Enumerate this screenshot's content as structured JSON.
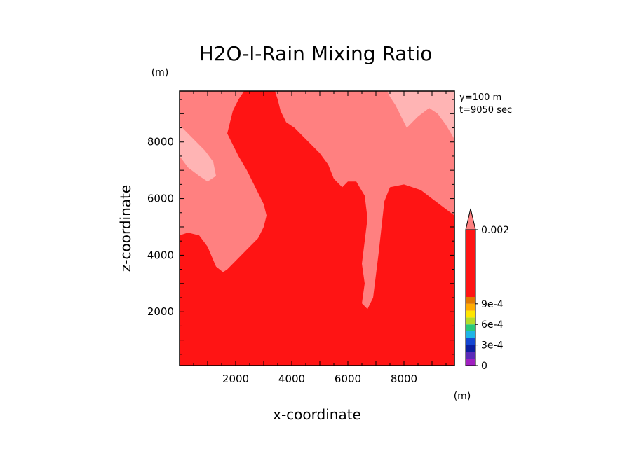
{
  "chart_data": {
    "type": "contour",
    "title": "H2O-l-Rain Mixing Ratio",
    "xlabel": "x-coordinate",
    "ylabel": "z-coordinate",
    "x_unit": "(m)",
    "y_unit": "(m)",
    "annotations": [
      "y=100 m",
      "t=9050 sec"
    ],
    "xlim": [
      0,
      9800
    ],
    "ylim": [
      100,
      9800
    ],
    "x_ticks": [
      2000,
      4000,
      6000,
      8000
    ],
    "y_ticks": [
      2000,
      4000,
      6000,
      8000
    ],
    "colorbar": {
      "levels": [
        0,
        0.0001,
        0.0002,
        0.0003,
        0.0004,
        0.0005,
        0.0006,
        0.0007,
        0.0008,
        0.0009,
        0.001,
        0.002
      ],
      "tick_labels": [
        {
          "value": 0,
          "label": "0"
        },
        {
          "value": 0.0003,
          "label": "3e-4"
        },
        {
          "value": 0.0006,
          "label": "6e-4"
        },
        {
          "value": 0.0009,
          "label": "9e-4"
        },
        {
          "value": 0.002,
          "label": "0.002"
        }
      ],
      "colors": [
        "#a020c0",
        "#5a2ab8",
        "#0a1ea0",
        "#1446d2",
        "#1eb4e6",
        "#28c878",
        "#b4dc28",
        "#ffe600",
        "#ffaa00",
        "#e17800",
        "#ff1414",
        "#ff8080",
        "#ffb4b4"
      ],
      "extend": "max"
    },
    "regions": [
      {
        "name": "red-region",
        "range": "0.001-0.002",
        "color": "#ff1414",
        "polygon": [
          [
            0,
            100
          ],
          [
            9800,
            100
          ],
          [
            9800,
            9800
          ],
          [
            0,
            9800
          ]
        ]
      },
      {
        "name": "pink-left-region",
        "range": "0.001-0.002",
        "color": "#ff8080",
        "polygon": [
          [
            0,
            4700
          ],
          [
            300,
            4800
          ],
          [
            700,
            4700
          ],
          [
            1000,
            4300
          ],
          [
            1300,
            3600
          ],
          [
            1550,
            3400
          ],
          [
            1700,
            3500
          ],
          [
            2000,
            3800
          ],
          [
            2400,
            4200
          ],
          [
            2800,
            4600
          ],
          [
            3000,
            5000
          ],
          [
            3100,
            5400
          ],
          [
            3000,
            5800
          ],
          [
            2700,
            6400
          ],
          [
            2400,
            7000
          ],
          [
            2100,
            7500
          ],
          [
            1900,
            7900
          ],
          [
            1700,
            8300
          ],
          [
            1800,
            8700
          ],
          [
            1900,
            9100
          ],
          [
            2100,
            9500
          ],
          [
            2300,
            9800
          ],
          [
            0,
            9800
          ]
        ]
      },
      {
        "name": "pink-center-region",
        "range": "0.001-0.002",
        "color": "#ff8080",
        "polygon": [
          [
            3400,
            9800
          ],
          [
            9800,
            9800
          ],
          [
            9800,
            5400
          ],
          [
            9400,
            5700
          ],
          [
            9000,
            6000
          ],
          [
            8600,
            6300
          ],
          [
            8000,
            6500
          ],
          [
            7500,
            6400
          ],
          [
            7300,
            5900
          ],
          [
            7200,
            5000
          ],
          [
            7100,
            4100
          ],
          [
            7000,
            3300
          ],
          [
            6900,
            2500
          ],
          [
            6700,
            2100
          ],
          [
            6500,
            2300
          ],
          [
            6600,
            3000
          ],
          [
            6500,
            3700
          ],
          [
            6600,
            4500
          ],
          [
            6700,
            5300
          ],
          [
            6600,
            6100
          ],
          [
            6300,
            6600
          ],
          [
            6000,
            6600
          ],
          [
            5800,
            6400
          ],
          [
            5500,
            6700
          ],
          [
            5300,
            7200
          ],
          [
            5000,
            7600
          ],
          [
            4700,
            7900
          ],
          [
            4400,
            8200
          ],
          [
            4100,
            8500
          ],
          [
            3800,
            8700
          ],
          [
            3600,
            9100
          ],
          [
            3500,
            9500
          ]
        ]
      },
      {
        "name": "light-pink-top-region",
        "range": "> 0.002",
        "color": "#ffb4b4",
        "polygon": [
          [
            7400,
            9800
          ],
          [
            9800,
            9800
          ],
          [
            9800,
            8100
          ],
          [
            9500,
            8600
          ],
          [
            9200,
            9000
          ],
          [
            8900,
            9200
          ],
          [
            8500,
            8900
          ],
          [
            8100,
            8500
          ],
          [
            7900,
            8900
          ],
          [
            7700,
            9300
          ],
          [
            7500,
            9600
          ]
        ]
      },
      {
        "name": "light-pink-left-region",
        "range": "> 0.002",
        "color": "#ffb4b4",
        "polygon": [
          [
            0,
            7500
          ],
          [
            300,
            7100
          ],
          [
            700,
            6800
          ],
          [
            1000,
            6600
          ],
          [
            1300,
            6800
          ],
          [
            1200,
            7300
          ],
          [
            900,
            7700
          ],
          [
            500,
            8100
          ],
          [
            200,
            8400
          ],
          [
            0,
            8600
          ]
        ]
      }
    ]
  }
}
